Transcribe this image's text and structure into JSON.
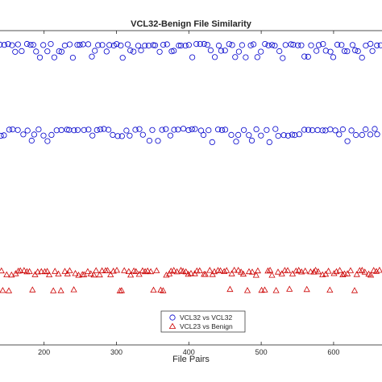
{
  "chart_data": {
    "type": "scatter",
    "title": "VCL32-Benign File Similarity",
    "xlabel": "File Pairs",
    "ylabel": "",
    "xlim": [
      138,
      668
    ],
    "ylim": [
      0,
      1
    ],
    "xticks": [
      200,
      300,
      400,
      500,
      600
    ],
    "grid": false,
    "legend_position": "bottom-center",
    "series": [
      {
        "name": "VCL32 vs VCL32",
        "marker": "circle",
        "color": "#0000cc",
        "bands": [
          {
            "x_start": 140,
            "x_end": 666,
            "step": 5,
            "levels": [
              0.955,
              0.935,
              0.915
            ]
          },
          {
            "x_start": 140,
            "x_end": 666,
            "step": 6,
            "levels": [
              0.685,
              0.667,
              0.648
            ]
          }
        ]
      },
      {
        "name": "VCL23 vs Benign",
        "marker": "triangle",
        "color": "#cc0000",
        "bands": [
          {
            "x_start": 140,
            "x_end": 666,
            "step": 4,
            "levels": [
              0.235,
              0.225,
              0.175
            ]
          }
        ]
      }
    ]
  }
}
